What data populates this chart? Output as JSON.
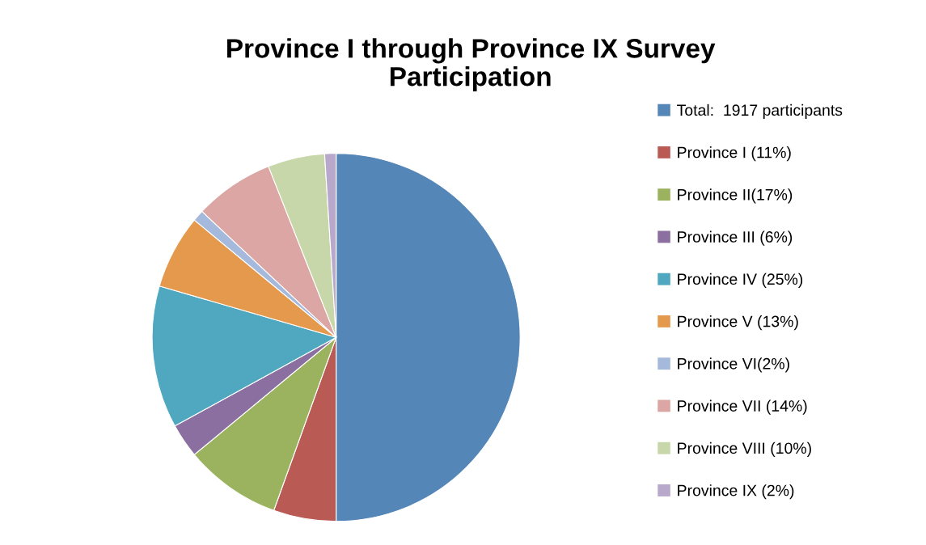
{
  "chart_data": {
    "type": "pie",
    "title": "Province I through Province IX Survey\nParticipation",
    "categories": [
      "Total:  1917 participants",
      "Province I (11%)",
      "Province II(17%)",
      "Province III (6%)",
      "Province IV (25%)",
      "Province V (13%)",
      "Province VI(2%)",
      "Province VII (14%)",
      "Province VIII (10%)",
      "Province IX (2%)"
    ],
    "values": [
      50,
      5.5,
      8.5,
      3,
      12.5,
      6.5,
      1,
      7,
      5,
      1
    ],
    "colors": [
      "#5586b8",
      "#b95a55",
      "#9bb35e",
      "#8a6fa0",
      "#4fa8c0",
      "#e5994d",
      "#a5b9dc",
      "#dba6a3",
      "#c7d7a9",
      "#b8a9cc"
    ],
    "legend": "right"
  }
}
